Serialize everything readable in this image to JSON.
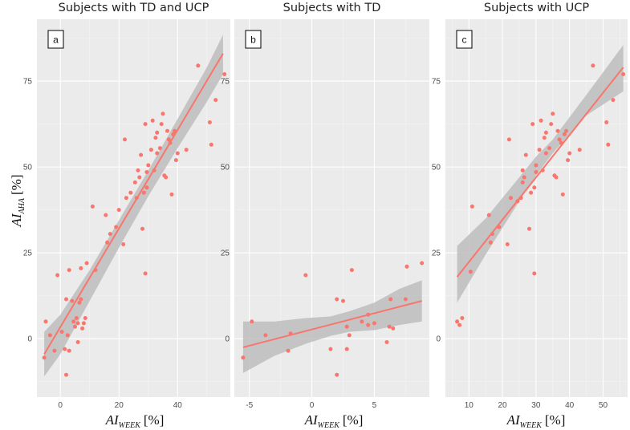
{
  "figure": {
    "ylabel_main": "AI",
    "ylabel_sub": "AHA",
    "ylabel_unit": "[%]",
    "xlabel_main": "AI",
    "xlabel_sub": "WEEK",
    "xlabel_unit": "[%]"
  },
  "colors": {
    "panel_bg": "#ebebeb",
    "grid_major": "#ffffff",
    "grid_minor": "#f4f4f4",
    "points": "#f8766d",
    "fit_line": "#f8766d",
    "ribbon": "#bdbdbd"
  },
  "chart_data": [
    {
      "type": "scatter",
      "tag": "a",
      "title": "Subjects with TD and UCP",
      "xlim": [
        -8,
        58
      ],
      "ylim": [
        -17,
        93
      ],
      "xticks": [
        0,
        20,
        40
      ],
      "yticks": [
        0,
        25,
        50,
        75
      ],
      "fit": {
        "x0": -5.5,
        "x1": 55.5,
        "y0": -4.5,
        "y1": 83
      },
      "ribbon": {
        "x": [
          -5.5,
          0,
          10,
          20,
          30,
          40,
          50,
          55.5
        ],
        "lower": [
          -11,
          -4.5,
          11,
          26.5,
          41.5,
          55.5,
          69,
          77
        ],
        "upper": [
          2,
          7,
          20,
          34.5,
          49,
          64,
          79,
          88.5
        ]
      },
      "points": [
        [
          -5.5,
          -5.5
        ],
        [
          -5,
          5
        ],
        [
          -3.5,
          1
        ],
        [
          -2,
          -3.5
        ],
        [
          -1,
          18.5
        ],
        [
          0.5,
          2
        ],
        [
          1.5,
          -3
        ],
        [
          2,
          -10.5
        ],
        [
          2,
          11.5
        ],
        [
          3,
          -3.5
        ],
        [
          2.5,
          1
        ],
        [
          3,
          20
        ],
        [
          4,
          11
        ],
        [
          4.5,
          5
        ],
        [
          5,
          3.5
        ],
        [
          5.5,
          6
        ],
        [
          6,
          4.5
        ],
        [
          6,
          -1
        ],
        [
          6.5,
          10.5
        ],
        [
          7,
          11.5
        ],
        [
          7,
          20.5
        ],
        [
          7.5,
          3
        ],
        [
          8,
          4.5
        ],
        [
          8.5,
          6
        ],
        [
          9,
          22
        ],
        [
          11,
          38.5
        ],
        [
          12,
          20
        ],
        [
          15.5,
          36
        ],
        [
          16,
          28
        ],
        [
          17,
          30.5
        ],
        [
          19,
          32.5
        ],
        [
          20,
          37.5
        ],
        [
          21.5,
          27.5
        ],
        [
          22,
          58
        ],
        [
          22.5,
          41
        ],
        [
          24,
          42.5
        ],
        [
          25.5,
          45.5
        ],
        [
          26,
          41
        ],
        [
          26.5,
          49
        ],
        [
          27,
          47
        ],
        [
          27.5,
          53.5
        ],
        [
          28,
          32
        ],
        [
          28.5,
          42.5
        ],
        [
          29,
          62.5
        ],
        [
          29.5,
          44
        ],
        [
          29,
          19
        ],
        [
          29.5,
          48.5
        ],
        [
          30,
          50.5
        ],
        [
          31,
          55
        ],
        [
          31.5,
          63.5
        ],
        [
          32,
          49
        ],
        [
          32.5,
          58.5
        ],
        [
          33,
          60
        ],
        [
          33,
          54
        ],
        [
          34,
          55.5
        ],
        [
          34.5,
          62.5
        ],
        [
          35,
          65.5
        ],
        [
          35.5,
          47.5
        ],
        [
          36,
          47
        ],
        [
          36.5,
          60.5
        ],
        [
          37,
          58
        ],
        [
          37.5,
          57
        ],
        [
          38,
          42
        ],
        [
          38.5,
          59.5
        ],
        [
          39,
          60.5
        ],
        [
          39.5,
          52
        ],
        [
          40,
          54
        ],
        [
          43,
          55
        ],
        [
          47,
          79.5
        ],
        [
          51,
          63
        ],
        [
          51.5,
          56.5
        ],
        [
          53,
          69.5
        ],
        [
          56,
          77
        ]
      ]
    },
    {
      "type": "scatter",
      "tag": "b",
      "title": "Subjects with TD",
      "xlim": [
        -6.2,
        9.4
      ],
      "ylim": [
        -17,
        93
      ],
      "xticks": [
        -5,
        0,
        5
      ],
      "yticks": [
        0,
        25,
        50,
        75
      ],
      "fit": {
        "x0": -5.5,
        "x1": 8.8,
        "y0": -2.5,
        "y1": 11
      },
      "ribbon": {
        "x": [
          -5.5,
          -3,
          -0.5,
          1.5,
          3,
          5,
          7,
          8.8
        ],
        "lower": [
          -10,
          -5,
          -1.5,
          0.8,
          2,
          2.5,
          4,
          5
        ],
        "upper": [
          5,
          5,
          6,
          6.5,
          8,
          10.5,
          14.5,
          17
        ]
      },
      "points": [
        [
          -5.5,
          -5.5
        ],
        [
          -4.8,
          5
        ],
        [
          -3.7,
          1
        ],
        [
          -1.7,
          1.5
        ],
        [
          -1.9,
          -3.5
        ],
        [
          -0.5,
          18.5
        ],
        [
          1.5,
          -3
        ],
        [
          2.0,
          11.5
        ],
        [
          2.0,
          -10.5
        ],
        [
          2.5,
          11
        ],
        [
          2.8,
          3.5
        ],
        [
          2.8,
          -3
        ],
        [
          3.0,
          1
        ],
        [
          3.2,
          20
        ],
        [
          4.0,
          5
        ],
        [
          4.5,
          7
        ],
        [
          4.5,
          4
        ],
        [
          5.0,
          4.5
        ],
        [
          6.0,
          -1
        ],
        [
          6.2,
          3.5
        ],
        [
          6.3,
          11.5
        ],
        [
          6.5,
          3
        ],
        [
          7.5,
          11.5
        ],
        [
          7.6,
          21
        ],
        [
          8.8,
          22
        ]
      ]
    },
    {
      "type": "scatter",
      "tag": "c",
      "title": "Subjects with UCP",
      "xlim": [
        3,
        57.3
      ],
      "ylim": [
        -17,
        93
      ],
      "xticks": [
        10,
        20,
        30,
        40,
        50
      ],
      "yticks": [
        0,
        25,
        50,
        75
      ],
      "fit": {
        "x0": 6.5,
        "x1": 56,
        "y0": 18,
        "y1": 79
      },
      "ribbon": {
        "x": [
          6.5,
          15,
          25,
          30,
          35,
          45,
          56
        ],
        "lower": [
          10.5,
          24.5,
          40,
          47.5,
          54,
          65,
          72
        ],
        "upper": [
          27,
          35,
          47,
          53,
          58,
          71,
          85.5
        ]
      },
      "points": [
        [
          6.5,
          5
        ],
        [
          7.2,
          4
        ],
        [
          8,
          6
        ],
        [
          10.5,
          19.5
        ],
        [
          11,
          38.5
        ],
        [
          16,
          36
        ],
        [
          16.5,
          28
        ],
        [
          17,
          30.5
        ],
        [
          19,
          32.5
        ],
        [
          21.5,
          27.5
        ],
        [
          22,
          58
        ],
        [
          22.5,
          41
        ],
        [
          24.5,
          40
        ],
        [
          25.5,
          41
        ],
        [
          26,
          45.5
        ],
        [
          26,
          49
        ],
        [
          26.5,
          47
        ],
        [
          27,
          53.5
        ],
        [
          28,
          32
        ],
        [
          28.5,
          42.5
        ],
        [
          29,
          62.5
        ],
        [
          29.5,
          44
        ],
        [
          29.5,
          19
        ],
        [
          30,
          48.5
        ],
        [
          30,
          50.5
        ],
        [
          31,
          55
        ],
        [
          31.5,
          63.5
        ],
        [
          32,
          49
        ],
        [
          32.5,
          58.5
        ],
        [
          33,
          60
        ],
        [
          33,
          54
        ],
        [
          34,
          55.5
        ],
        [
          34.5,
          62.5
        ],
        [
          35,
          65.5
        ],
        [
          35.5,
          47.5
        ],
        [
          36,
          47
        ],
        [
          36.5,
          60.5
        ],
        [
          37,
          58
        ],
        [
          37.5,
          57
        ],
        [
          38,
          42
        ],
        [
          38.5,
          59.5
        ],
        [
          39,
          60.5
        ],
        [
          39.5,
          52
        ],
        [
          40,
          54
        ],
        [
          43,
          55
        ],
        [
          47,
          79.5
        ],
        [
          51,
          63
        ],
        [
          51.5,
          56.5
        ],
        [
          53,
          69.5
        ],
        [
          56,
          77
        ]
      ]
    }
  ]
}
